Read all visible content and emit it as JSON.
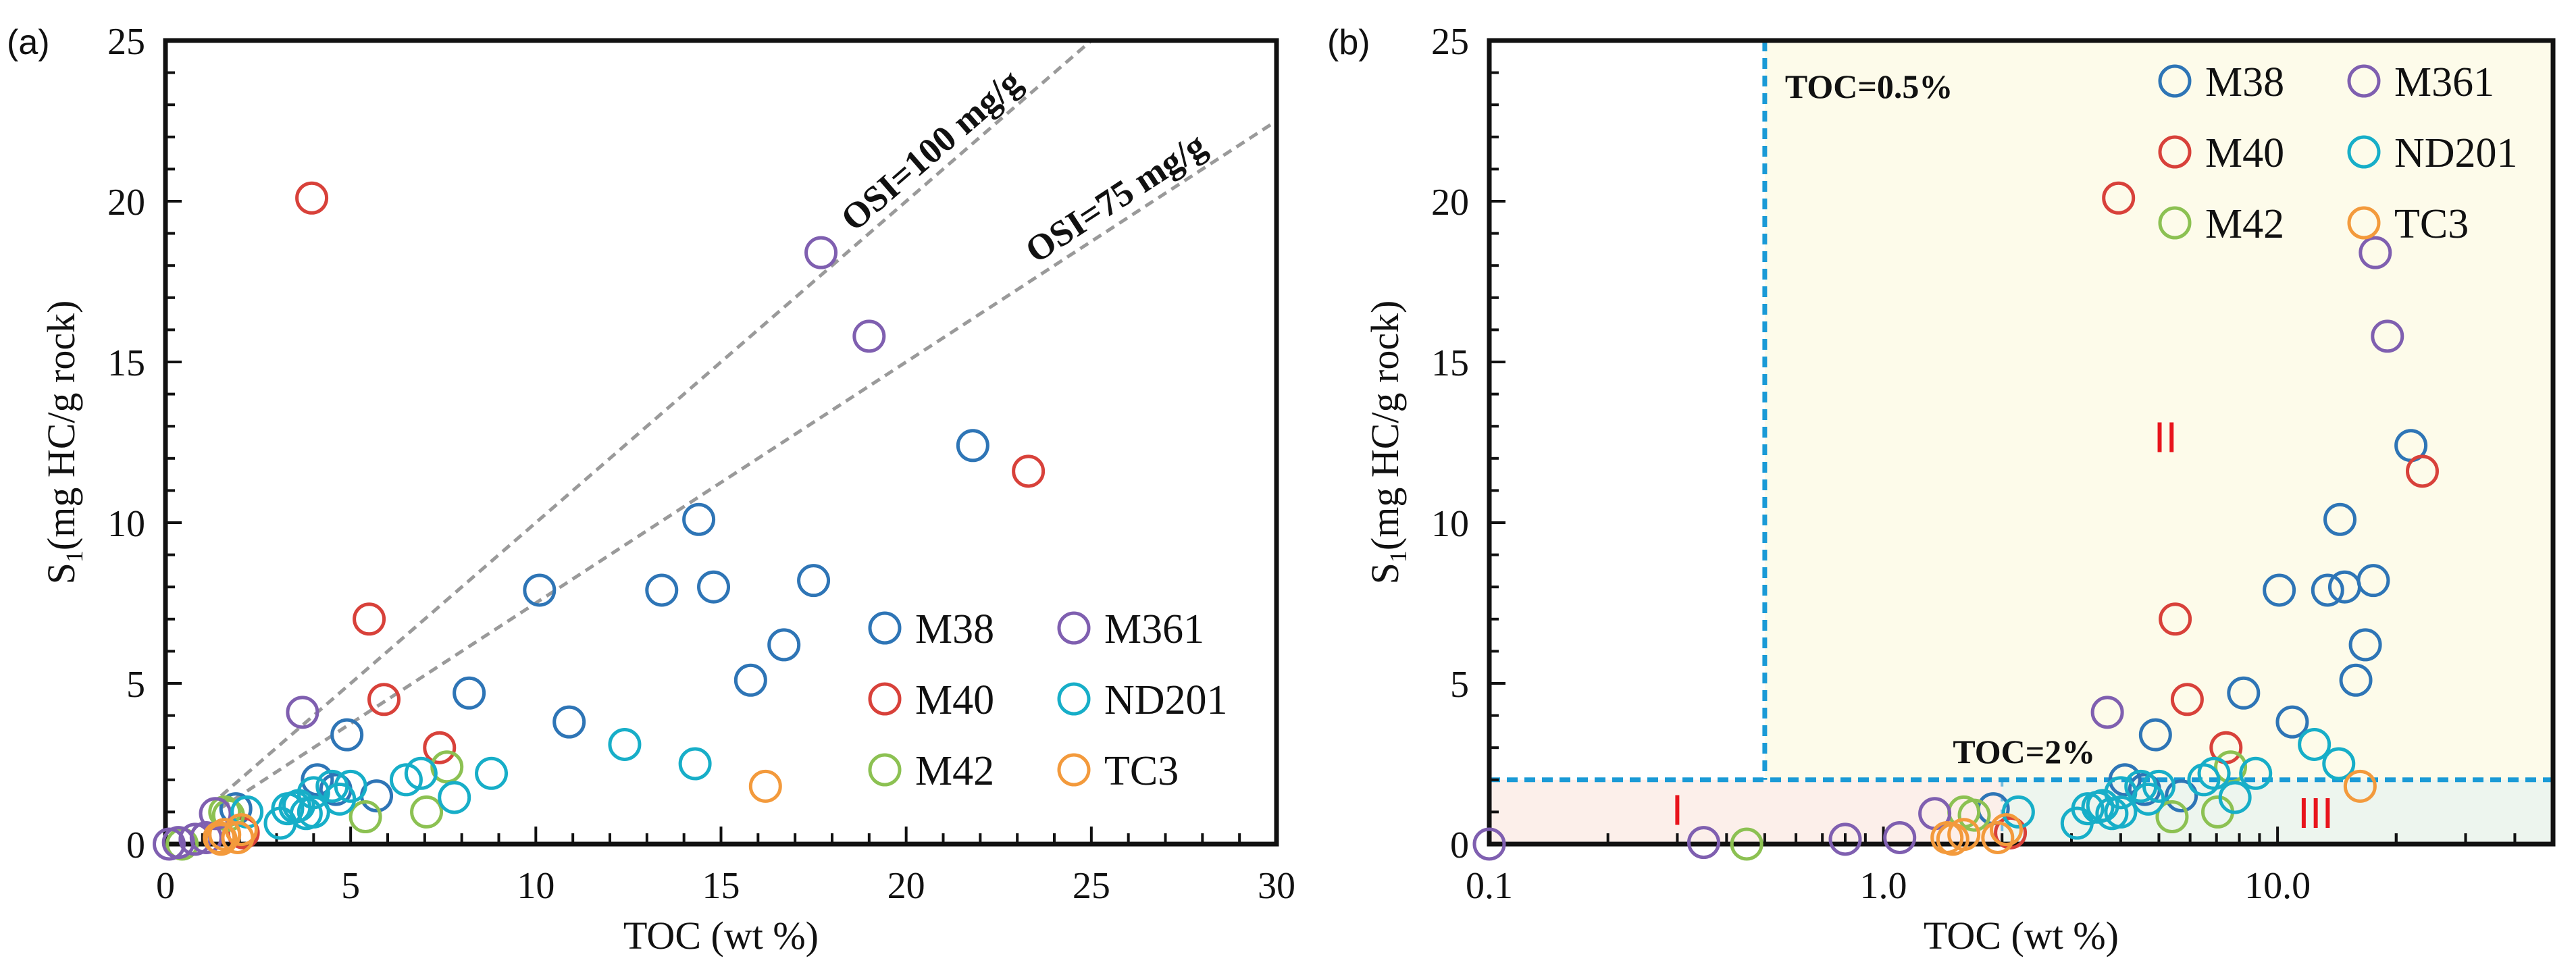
{
  "chart_data": {
    "type": "scatter",
    "series": [
      {
        "name": "M38",
        "color": "#2e75b6",
        "points": [
          [
            21.8,
            12.4
          ],
          [
            14.4,
            10.1
          ],
          [
            10.1,
            7.9
          ],
          [
            13.4,
            7.9
          ],
          [
            14.8,
            8.0
          ],
          [
            17.5,
            8.2
          ],
          [
            16.7,
            6.2
          ],
          [
            15.8,
            5.1
          ],
          [
            8.2,
            4.7
          ],
          [
            10.9,
            3.8
          ],
          [
            4.9,
            3.4
          ],
          [
            4.1,
            2.0
          ],
          [
            5.7,
            1.5
          ],
          [
            1.9,
            1.1
          ],
          [
            4.6,
            1.7
          ]
        ]
      },
      {
        "name": "M40",
        "color": "#d8413a",
        "points": [
          [
            3.95,
            20.1
          ],
          [
            5.5,
            7.0
          ],
          [
            5.9,
            4.5
          ],
          [
            7.4,
            3.0
          ],
          [
            23.3,
            11.6
          ],
          [
            2.1,
            0.35
          ]
        ]
      },
      {
        "name": "M42",
        "color": "#8cc152",
        "points": [
          [
            7.6,
            2.4
          ],
          [
            5.4,
            0.85
          ],
          [
            7.05,
            1.0
          ],
          [
            0.45,
            0.0
          ],
          [
            1.6,
            1.0
          ],
          [
            1.7,
            0.9
          ]
        ]
      },
      {
        "name": "M361",
        "color": "#7f5fb0",
        "points": [
          [
            17.7,
            18.4
          ],
          [
            19.0,
            15.8
          ],
          [
            3.7,
            4.1
          ],
          [
            1.35,
            0.95
          ],
          [
            0.8,
            0.15
          ],
          [
            1.1,
            0.2
          ],
          [
            0.35,
            0.05
          ],
          [
            0.1,
            0.0
          ]
        ]
      },
      {
        "name": "ND201",
        "color": "#17aec8",
        "points": [
          [
            12.4,
            3.1
          ],
          [
            14.3,
            2.5
          ],
          [
            8.8,
            2.2
          ],
          [
            6.5,
            2.0
          ],
          [
            6.9,
            2.2
          ],
          [
            7.8,
            1.45
          ],
          [
            5.0,
            1.8
          ],
          [
            4.5,
            1.8
          ],
          [
            4.0,
            1.6
          ],
          [
            4.7,
            1.4
          ],
          [
            4.0,
            1.0
          ],
          [
            3.3,
            1.1
          ],
          [
            3.5,
            1.15
          ],
          [
            3.1,
            0.65
          ],
          [
            2.2,
            1.0
          ],
          [
            3.6,
            1.2
          ],
          [
            3.8,
            0.95
          ]
        ]
      },
      {
        "name": "TC3",
        "color": "#f39a3c",
        "points": [
          [
            16.2,
            1.8
          ],
          [
            1.45,
            0.2
          ],
          [
            1.95,
            0.2
          ],
          [
            2.05,
            0.45
          ],
          [
            1.6,
            0.3
          ],
          [
            1.5,
            0.15
          ]
        ]
      }
    ],
    "panels": [
      {
        "label": "(a)",
        "xscale": "linear",
        "xlim": [
          0,
          30
        ],
        "ylim": [
          0,
          25
        ],
        "xticks": [
          "0",
          "5",
          "10",
          "15",
          "20",
          "25",
          "30"
        ],
        "yticks": [
          "0",
          "5",
          "10",
          "15",
          "20",
          "25"
        ],
        "xlabel": "TOC (wt %)",
        "ylabel_main": "S",
        "ylabel_sub": "1",
        "ylabel_rest": "(mg HC/g rock)",
        "legend_position": "bottom-right",
        "reference_lines": [
          {
            "label": "OSI=100 mg/g",
            "slope": 1.0
          },
          {
            "label": "OSI=75 mg/g",
            "slope": 0.75
          }
        ],
        "line_color": "#9a9a9a"
      },
      {
        "label": "(b)",
        "xscale": "log",
        "xlim": [
          0.1,
          50
        ],
        "ylim": [
          0,
          25
        ],
        "xticks": [
          "0.1",
          "1.0",
          "10.0"
        ],
        "yticks": [
          "0",
          "5",
          "10",
          "15",
          "20",
          "25"
        ],
        "xlabel": "TOC (wt %)",
        "ylabel_main": "S",
        "ylabel_sub": "1",
        "ylabel_rest": "(mg HC/g rock)",
        "legend_position": "top-right",
        "threshold_color": "#1a9ad6",
        "thresholds": {
          "toc_low": 0.5,
          "toc_high": 2,
          "s1": 2,
          "toc_low_label": "TOC=0.5%",
          "toc_high_label": "TOC=2%"
        },
        "regions": [
          {
            "label": "I",
            "color": "#fcefea"
          },
          {
            "label": "II",
            "color": "#fdfbea"
          },
          {
            "label": "III",
            "color": "#edf5ee"
          }
        ]
      }
    ]
  }
}
